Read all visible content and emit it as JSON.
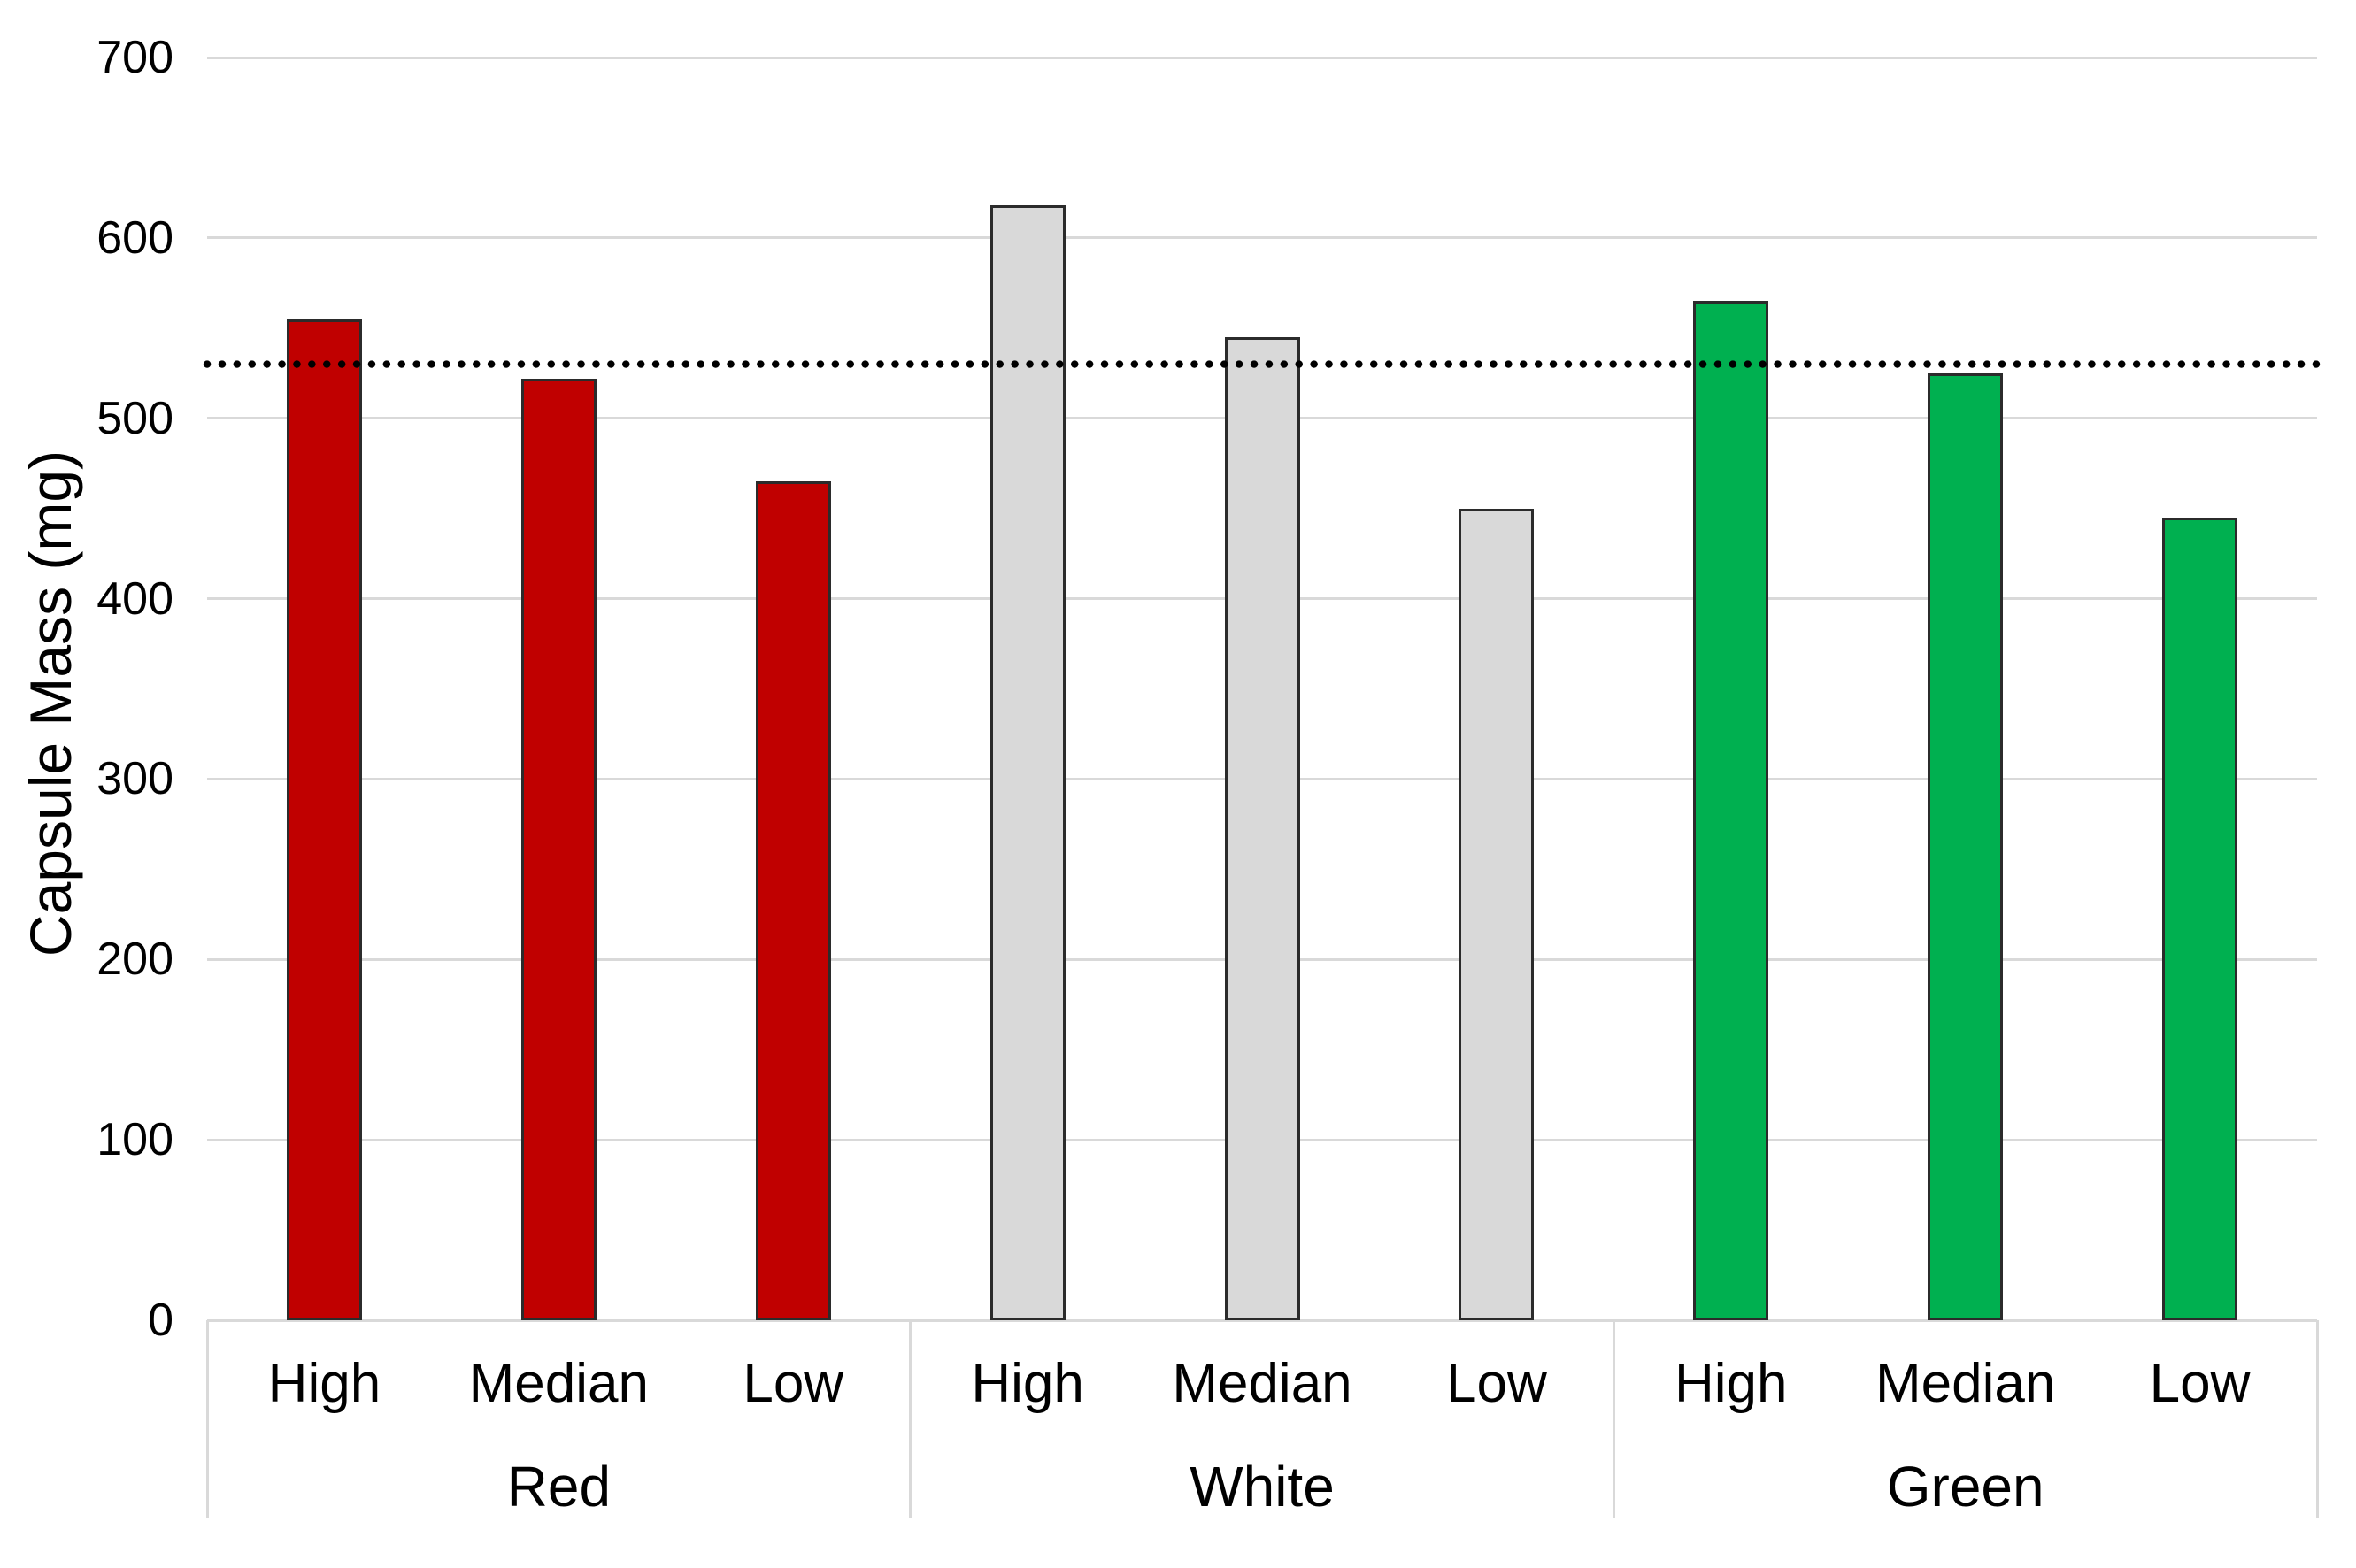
{
  "chart_data": {
    "type": "bar",
    "title": "",
    "ylabel": "Capsule Mass (mg)",
    "xlabel": "",
    "ylim": [
      0,
      700
    ],
    "yticks": [
      0,
      100,
      200,
      300,
      400,
      500,
      600,
      700
    ],
    "grid": true,
    "legend": false,
    "categories": [
      "High",
      "Median",
      "Low"
    ],
    "groups": [
      {
        "label": "Red",
        "bar_color": "#C00000",
        "bars": [
          {
            "category": "High",
            "value": 555
          },
          {
            "category": "Median",
            "value": 522
          },
          {
            "category": "Low",
            "value": 465
          }
        ]
      },
      {
        "label": "White",
        "bar_color": "#D9D9D9",
        "bars": [
          {
            "category": "High",
            "value": 618
          },
          {
            "category": "Median",
            "value": 545
          },
          {
            "category": "Low",
            "value": 450
          }
        ]
      },
      {
        "label": "Green",
        "bar_color": "#00B050",
        "bars": [
          {
            "category": "High",
            "value": 565
          },
          {
            "category": "Median",
            "value": 525
          },
          {
            "category": "Low",
            "value": 445
          }
        ]
      }
    ],
    "reference_line": {
      "value": 530,
      "style": "dotted",
      "color": "#000000"
    }
  },
  "style": {
    "background_color": "#FFFFFF",
    "gridline_color": "#D9D9D9",
    "axis_line_color": "#D9D9D9",
    "bar_outline_color": "#2B2B2B",
    "text_color": "#000000"
  }
}
